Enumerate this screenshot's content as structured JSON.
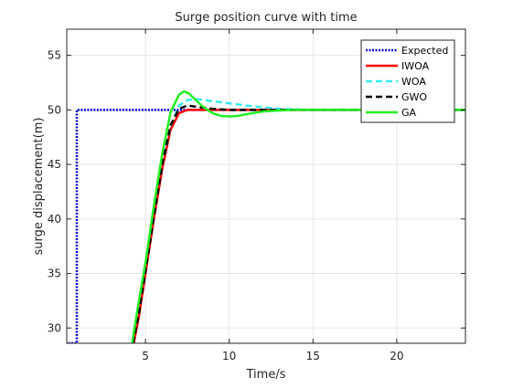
{
  "chart_data": {
    "type": "line",
    "title": "Surge position curve with time",
    "xlabel": "Time/s",
    "ylabel": "surge displacement(m)",
    "xlim": [
      0.3,
      24.1
    ],
    "ylim": [
      28.6,
      57.4
    ],
    "xticks": [
      5,
      10,
      15,
      20
    ],
    "yticks": [
      30,
      35,
      40,
      45,
      50,
      55
    ],
    "grid": true,
    "legend_position": "top-right",
    "series": [
      {
        "name": "Expected",
        "color": "#0000cc",
        "style": "dotted",
        "x": [
          0,
          0.9,
          0.9,
          24.1
        ],
        "y": [
          28.6,
          28.6,
          50,
          50
        ]
      },
      {
        "name": "IWOA",
        "color": "#ff0000",
        "style": "solid",
        "x": [
          4.3,
          4.6,
          5.0,
          5.5,
          6.0,
          6.5,
          7.0,
          7.5,
          8.0,
          9.0,
          10.0,
          12.0,
          15.0,
          20.0,
          24.1
        ],
        "y": [
          28.6,
          31.0,
          35.0,
          40.0,
          44.6,
          48.2,
          49.7,
          50.0,
          50.0,
          50.0,
          50.0,
          50.0,
          50.0,
          50.0,
          50.0
        ]
      },
      {
        "name": "WOA",
        "color": "#33eeee",
        "style": "dashed",
        "x": [
          4.2,
          4.5,
          5.0,
          5.5,
          6.0,
          6.5,
          7.0,
          7.5,
          8.0,
          8.5,
          9.0,
          10.0,
          11.0,
          12.0,
          13.0,
          15.0,
          18.0,
          24.1
        ],
        "y": [
          28.6,
          31.0,
          35.5,
          40.5,
          45.0,
          48.5,
          50.4,
          50.9,
          51.0,
          50.9,
          50.8,
          50.6,
          50.4,
          50.25,
          50.1,
          50.0,
          50.0,
          50.0
        ]
      },
      {
        "name": "GWO",
        "color": "#000000",
        "style": "dashed",
        "x": [
          4.25,
          4.6,
          5.0,
          5.5,
          6.0,
          6.5,
          7.0,
          7.5,
          8.0,
          8.5,
          9.0,
          10.0,
          12.0,
          15.0,
          24.1
        ],
        "y": [
          28.6,
          31.3,
          35.2,
          40.2,
          45.0,
          48.6,
          50.1,
          50.4,
          50.3,
          50.2,
          50.1,
          50.0,
          50.0,
          50.0,
          50.0
        ]
      },
      {
        "name": "GA",
        "color": "#22ee22",
        "style": "solid",
        "x": [
          4.2,
          4.5,
          5.0,
          5.5,
          6.0,
          6.5,
          7.0,
          7.3,
          7.6,
          8.0,
          8.5,
          9.0,
          9.5,
          10.0,
          10.5,
          11.0,
          12.0,
          13.0,
          14.0,
          15.0,
          17.0,
          20.0,
          24.1
        ],
        "y": [
          28.6,
          31.5,
          36.0,
          41.2,
          46.0,
          49.8,
          51.4,
          51.7,
          51.5,
          50.9,
          50.2,
          49.7,
          49.45,
          49.4,
          49.45,
          49.6,
          49.85,
          49.95,
          50.0,
          50.0,
          50.0,
          50.0,
          50.0
        ]
      }
    ]
  }
}
